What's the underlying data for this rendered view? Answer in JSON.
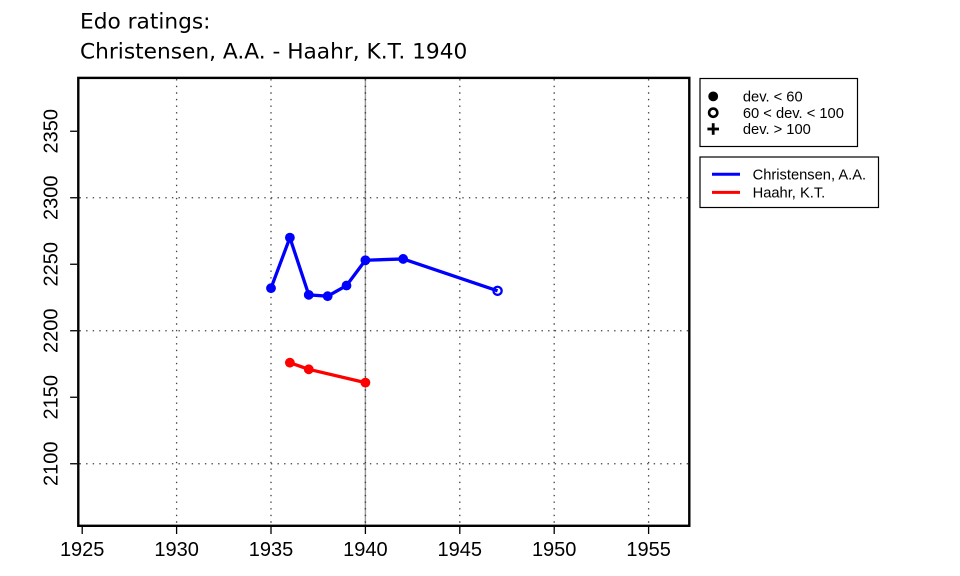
{
  "title": {
    "line1": "Edo ratings:",
    "line2": "Christensen, A.A. - Haahr, K.T. 1940"
  },
  "chart_data": {
    "type": "line",
    "title": "Edo ratings: Christensen, A.A. - Haahr, K.T. 1940",
    "xlabel": "",
    "ylabel": "",
    "xlim": [
      1924.8,
      1957.2
    ],
    "ylim": [
      2053,
      2390
    ],
    "x_ticks": [
      1925,
      1930,
      1935,
      1940,
      1945,
      1950,
      1955
    ],
    "y_ticks": [
      2100,
      2150,
      2200,
      2250,
      2300,
      2350
    ],
    "grid": {
      "style": "dotted",
      "x_lines": [
        1930,
        1935,
        1940,
        1945,
        1950,
        1955
      ],
      "y_lines": [
        2100,
        2200,
        2300
      ]
    },
    "event_year_line": 1940,
    "series": [
      {
        "name": "Christensen, A.A.",
        "color": "#0000ff",
        "points": [
          {
            "x": 1935,
            "y": 2232,
            "marker": "filled"
          },
          {
            "x": 1936,
            "y": 2270,
            "marker": "filled"
          },
          {
            "x": 1937,
            "y": 2227,
            "marker": "filled"
          },
          {
            "x": 1938,
            "y": 2226,
            "marker": "filled"
          },
          {
            "x": 1939,
            "y": 2234,
            "marker": "filled"
          },
          {
            "x": 1940,
            "y": 2253,
            "marker": "filled"
          },
          {
            "x": 1942,
            "y": 2254,
            "marker": "filled"
          },
          {
            "x": 1947,
            "y": 2230,
            "marker": "open"
          }
        ]
      },
      {
        "name": "Haahr, K.T.",
        "color": "#ff0000",
        "points": [
          {
            "x": 1936,
            "y": 2176,
            "marker": "filled"
          },
          {
            "x": 1937,
            "y": 2171,
            "marker": "filled"
          },
          {
            "x": 1940,
            "y": 2161,
            "marker": "filled"
          }
        ]
      }
    ],
    "symbol_legend": [
      {
        "symbol": "filled-circle",
        "label": "dev. < 60"
      },
      {
        "symbol": "open-circle",
        "label": "60 < dev. < 100"
      },
      {
        "symbol": "plus",
        "label": "dev. > 100"
      }
    ],
    "series_legend": [
      {
        "color": "#0000ff",
        "label": "Christensen, A.A."
      },
      {
        "color": "#ff0000",
        "label": "Haahr, K.T."
      }
    ]
  }
}
